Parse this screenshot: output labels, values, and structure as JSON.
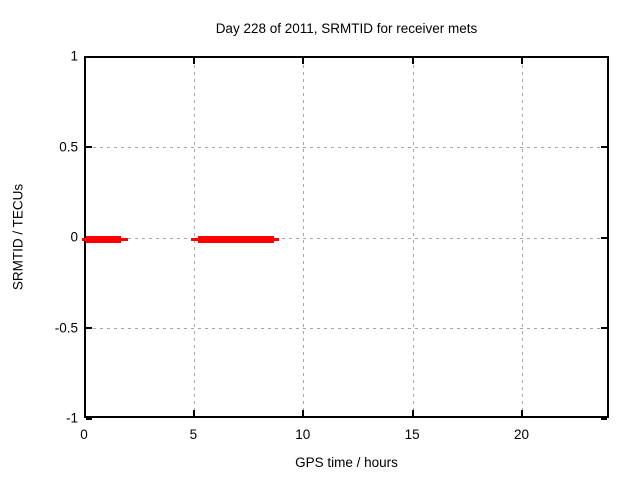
{
  "page": {
    "background": "#ffffff"
  },
  "chart_data": {
    "type": "line",
    "title": "Day 228 of 2011, SRMTID for receiver mets",
    "xlabel": "GPS time / hours",
    "ylabel": "SRMTID / TECUs",
    "xlim": [
      0,
      24
    ],
    "ylim": [
      -1,
      1
    ],
    "xticks": [
      0,
      5,
      10,
      15,
      20
    ],
    "xtick_labels": [
      "0",
      "5",
      "10",
      "15",
      "20"
    ],
    "yticks": [
      1,
      0.5,
      0,
      -0.5,
      -1
    ],
    "ytick_labels": [
      "1",
      "0.5",
      "0",
      "-0.5",
      "-1"
    ],
    "grid": true,
    "legend": "none",
    "colors": {
      "series": "#ff0000",
      "grid": "#a6a6a6",
      "border": "#000000",
      "text": "#000000",
      "background": "#ffffff"
    },
    "series": [
      {
        "name": "SRMTID",
        "style": "thick horizontal segments at y=0 with thin whisker ends",
        "y_value": 0,
        "segments": [
          {
            "line_start": -0.2,
            "bar_start": 0.0,
            "bar_end": 1.6,
            "line_end": 1.9
          },
          {
            "line_start": 4.8,
            "bar_start": 5.1,
            "bar_end": 8.6,
            "line_end": 8.8
          }
        ]
      }
    ]
  }
}
